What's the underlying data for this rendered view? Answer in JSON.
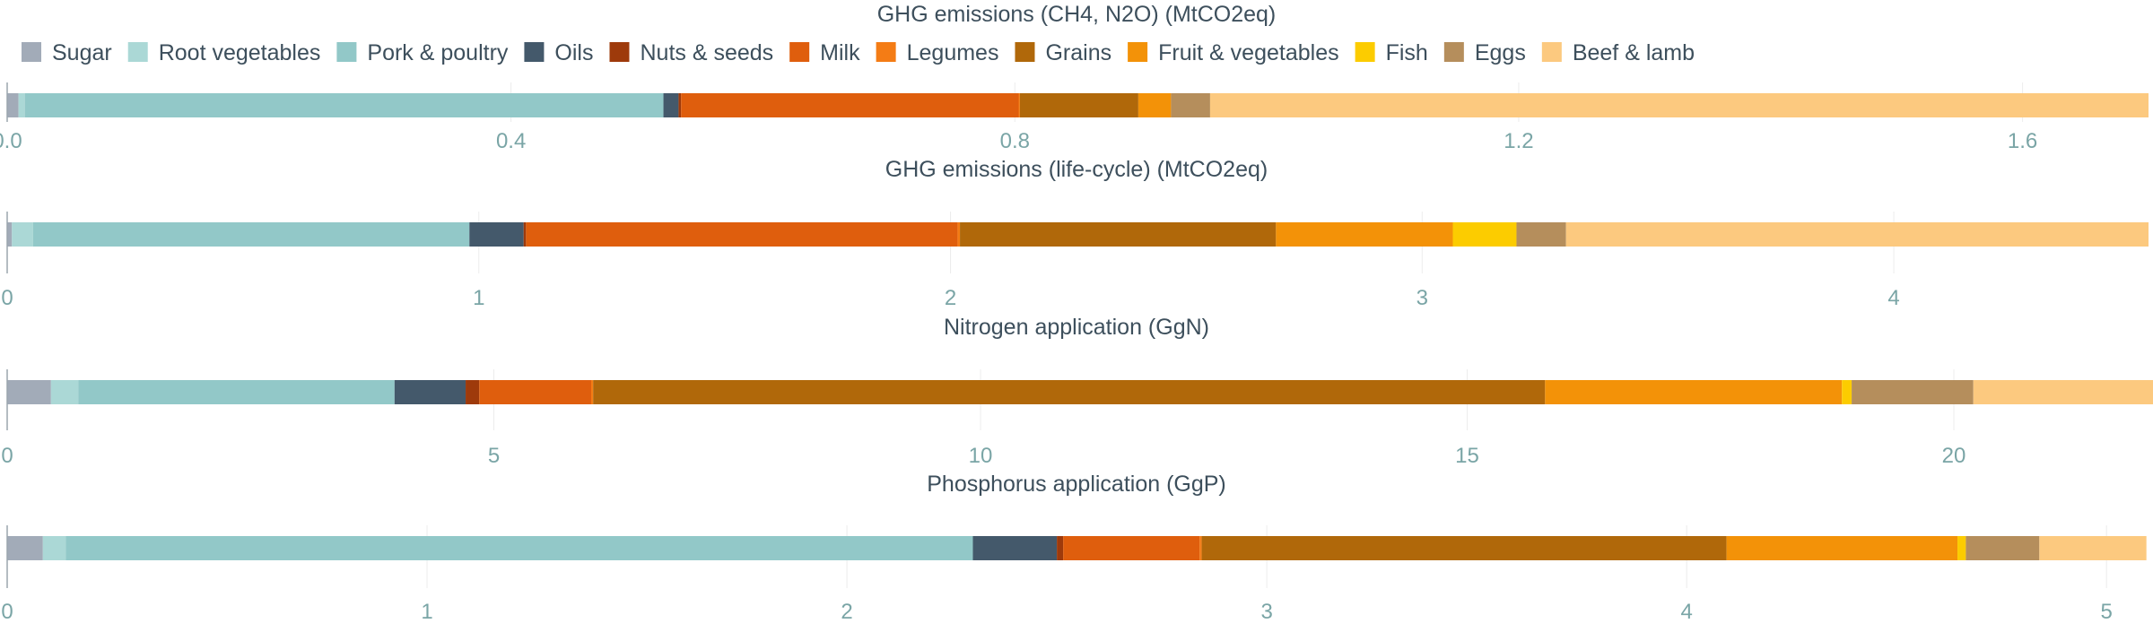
{
  "legend": [
    {
      "name": "Sugar",
      "color": "#a2abb8"
    },
    {
      "name": "Root vegetables",
      "color": "#abd8d6"
    },
    {
      "name": "Pork & poultry",
      "color": "#92c8c8"
    },
    {
      "name": "Oils",
      "color": "#44596b"
    },
    {
      "name": "Nuts & seeds",
      "color": "#9e3a0b"
    },
    {
      "name": "Milk",
      "color": "#df5e0d"
    },
    {
      "name": "Legumes",
      "color": "#f47c15"
    },
    {
      "name": "Grains",
      "color": "#b0680a"
    },
    {
      "name": "Fruit & vegetables",
      "color": "#f39208"
    },
    {
      "name": "Fish",
      "color": "#fccc00"
    },
    {
      "name": "Eggs",
      "color": "#b58e5c"
    },
    {
      "name": "Beef & lamb",
      "color": "#fcc97f"
    }
  ],
  "chart_data": [
    {
      "type": "bar",
      "orientation": "horizontal-stacked",
      "title": "GHG emissions (CH4, N2O) (MtCO2eq)",
      "xlim": [
        0,
        1.7
      ],
      "ticks": [
        0,
        0.4,
        0.8,
        1.2,
        1.6
      ],
      "tick_labels": [
        "0.0",
        "0.4",
        "0.8",
        "1.2",
        "1.6"
      ],
      "series": [
        {
          "name": "Sugar",
          "value": 0.009
        },
        {
          "name": "Root vegetables",
          "value": 0.005
        },
        {
          "name": "Pork & poultry",
          "value": 0.507
        },
        {
          "name": "Oils",
          "value": 0.012
        },
        {
          "name": "Nuts & seeds",
          "value": 0.002
        },
        {
          "name": "Milk",
          "value": 0.268
        },
        {
          "name": "Legumes",
          "value": 0.001
        },
        {
          "name": "Grains",
          "value": 0.094
        },
        {
          "name": "Fruit & vegetables",
          "value": 0.026
        },
        {
          "name": "Fish",
          "value": 0.0
        },
        {
          "name": "Eggs",
          "value": 0.031
        },
        {
          "name": "Beef & lamb",
          "value": 0.745
        }
      ]
    },
    {
      "type": "bar",
      "orientation": "horizontal-stacked",
      "title": "GHG emissions (life-cycle) (MtCO2eq)",
      "xlim": [
        0,
        4.54
      ],
      "ticks": [
        0,
        1,
        2,
        3,
        4
      ],
      "tick_labels": [
        "0",
        "1",
        "2",
        "3",
        "4"
      ],
      "series": [
        {
          "name": "Sugar",
          "value": 0.01
        },
        {
          "name": "Root vegetables",
          "value": 0.045
        },
        {
          "name": "Pork & poultry",
          "value": 0.925
        },
        {
          "name": "Oils",
          "value": 0.115
        },
        {
          "name": "Nuts & seeds",
          "value": 0.005
        },
        {
          "name": "Milk",
          "value": 0.915
        },
        {
          "name": "Legumes",
          "value": 0.005
        },
        {
          "name": "Grains",
          "value": 0.67
        },
        {
          "name": "Fruit & vegetables",
          "value": 0.375
        },
        {
          "name": "Fish",
          "value": 0.135
        },
        {
          "name": "Eggs",
          "value": 0.105
        },
        {
          "name": "Beef & lamb",
          "value": 1.235
        }
      ]
    },
    {
      "type": "bar",
      "orientation": "horizontal-stacked",
      "title": "Nitrogen application (GgN)",
      "xlim": [
        0,
        22.0
      ],
      "ticks": [
        0,
        5,
        10,
        15,
        20
      ],
      "tick_labels": [
        "0",
        "5",
        "10",
        "15",
        "20"
      ],
      "series": [
        {
          "name": "Sugar",
          "value": 0.45
        },
        {
          "name": "Root vegetables",
          "value": 0.28
        },
        {
          "name": "Pork & poultry",
          "value": 3.25
        },
        {
          "name": "Oils",
          "value": 0.73
        },
        {
          "name": "Nuts & seeds",
          "value": 0.14
        },
        {
          "name": "Milk",
          "value": 1.15
        },
        {
          "name": "Legumes",
          "value": 0.02
        },
        {
          "name": "Grains",
          "value": 9.78
        },
        {
          "name": "Fruit & vegetables",
          "value": 3.05
        },
        {
          "name": "Fish",
          "value": 0.1
        },
        {
          "name": "Eggs",
          "value": 1.25
        },
        {
          "name": "Beef & lamb",
          "value": 1.85
        }
      ]
    },
    {
      "type": "bar",
      "orientation": "horizontal-stacked",
      "title": "Phosphorus application (GgP)",
      "xlim": [
        0,
        5.1
      ],
      "ticks": [
        0,
        1,
        2,
        3,
        4,
        5
      ],
      "tick_labels": [
        "0",
        "1",
        "2",
        "3",
        "4",
        "5"
      ],
      "series": [
        {
          "name": "Sugar",
          "value": 0.085
        },
        {
          "name": "Root vegetables",
          "value": 0.055
        },
        {
          "name": "Pork & poultry",
          "value": 2.16
        },
        {
          "name": "Oils",
          "value": 0.2
        },
        {
          "name": "Nuts & seeds",
          "value": 0.015
        },
        {
          "name": "Milk",
          "value": 0.325
        },
        {
          "name": "Legumes",
          "value": 0.005
        },
        {
          "name": "Grains",
          "value": 1.25
        },
        {
          "name": "Fruit & vegetables",
          "value": 0.55
        },
        {
          "name": "Fish",
          "value": 0.02
        },
        {
          "name": "Eggs",
          "value": 0.175
        },
        {
          "name": "Beef & lamb",
          "value": 0.255
        }
      ]
    }
  ]
}
